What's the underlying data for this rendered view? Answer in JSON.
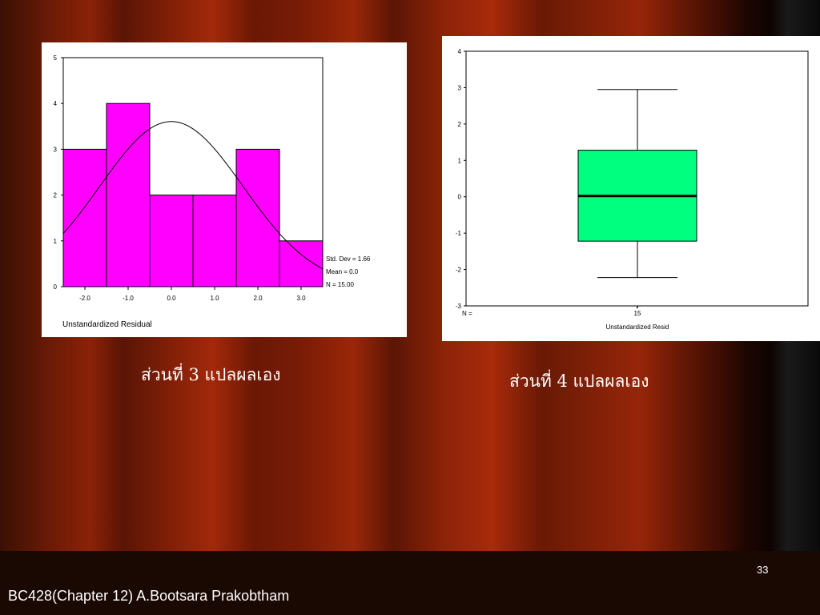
{
  "chart_data": [
    {
      "type": "bar",
      "subtype": "histogram",
      "categories": [
        "-2.0",
        "-1.0",
        "0.0",
        "1.0",
        "2.0",
        "3.0"
      ],
      "bins": [
        {
          "from": -2.5,
          "to": -1.5,
          "count": 3
        },
        {
          "from": -1.5,
          "to": -0.5,
          "count": 4
        },
        {
          "from": -0.5,
          "to": 0.5,
          "count": 2
        },
        {
          "from": 0.5,
          "to": 1.5,
          "count": 2
        },
        {
          "from": 1.5,
          "to": 2.5,
          "count": 3
        },
        {
          "from": 2.5,
          "to": 3.5,
          "count": 1
        }
      ],
      "xlim": [
        -2.5,
        3.5
      ],
      "ylim": [
        0,
        5
      ],
      "y_ticks": [
        "0",
        "1",
        "2",
        "3",
        "4",
        "5"
      ],
      "xlabel": "Unstandardized Residual",
      "normal_curve": {
        "mean": 0.0,
        "std_dev": 1.66,
        "n": 15
      },
      "stats": [
        "Std. Dev = 1.66",
        "Mean = 0.0",
        "N = 15.00"
      ],
      "bar_color": "#ff00ff",
      "grid": false
    },
    {
      "type": "box",
      "ylim": [
        -3,
        4
      ],
      "y_ticks": [
        "-3",
        "-2",
        "-1",
        "0",
        "1",
        "2",
        "3",
        "4"
      ],
      "min": -2.22,
      "q1": -1.22,
      "median": 0.02,
      "q3": 1.28,
      "max": 2.95,
      "n_label": "N =",
      "n_value": "15",
      "xlabel": "Unstandardized Resid",
      "box_color": "#00ff7f",
      "grid": false
    }
  ],
  "captions": {
    "left": "ส่วนที่ 3 แปลผลเอง",
    "right": "ส่วนที่ 4 แปลผลเอง"
  },
  "page_number": "33",
  "footer": "BC428(Chapter 12) A.Bootsara  Prakobtham"
}
